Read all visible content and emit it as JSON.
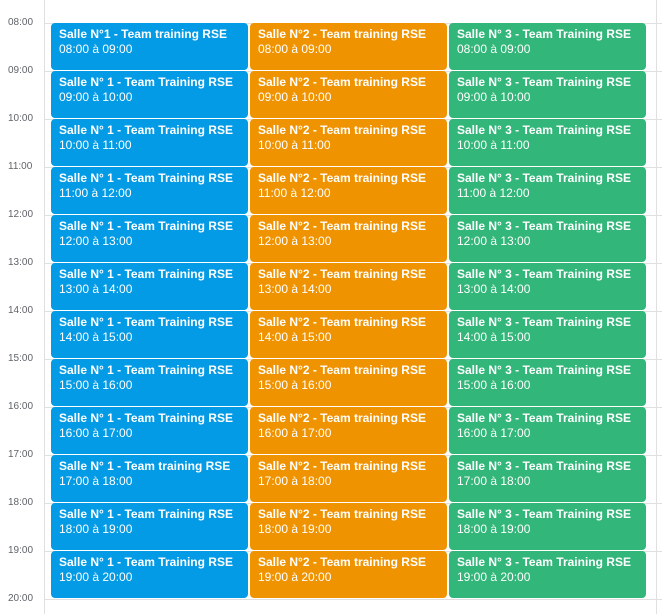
{
  "time_labels": [
    "08:00",
    "09:00",
    "10:00",
    "11:00",
    "12:00",
    "13:00",
    "14:00",
    "15:00",
    "16:00",
    "17:00",
    "18:00",
    "19:00",
    "20:00"
  ],
  "rooms": [
    {
      "color": "#039be5",
      "events": [
        {
          "title": "Salle N°1 - Team training RSE",
          "time": "08:00 à 09:00"
        },
        {
          "title": "Salle N° 1 - Team Training RSE",
          "time": "09:00 à 10:00"
        },
        {
          "title": "Salle N° 1 - Team Training RSE",
          "time": "10:00 à 11:00"
        },
        {
          "title": "Salle N° 1 - Team Training RSE",
          "time": "11:00 à 12:00"
        },
        {
          "title": "Salle N° 1 - Team Training RSE",
          "time": "12:00 à 13:00"
        },
        {
          "title": "Salle N° 1 - Team Training RSE",
          "time": "13:00 à 14:00"
        },
        {
          "title": "Salle N° 1 - Team Training RSE",
          "time": "14:00 à 15:00"
        },
        {
          "title": "Salle N° 1 - Team Training RSE",
          "time": "15:00 à 16:00"
        },
        {
          "title": "Salle N° 1 - Team Training RSE",
          "time": "16:00 à 17:00"
        },
        {
          "title": "Salle N° 1 - Team training RSE",
          "time": "17:00 à 18:00"
        },
        {
          "title": "Salle N° 1 - Team Training RSE",
          "time": "18:00 à 19:00"
        },
        {
          "title": "Salle N° 1 - Team Training RSE",
          "time": "19:00 à 20:00"
        }
      ]
    },
    {
      "color": "#f09300",
      "events": [
        {
          "title": "Salle N°2 - Team training RSE",
          "time": "08:00 à 09:00"
        },
        {
          "title": "Salle N°2 - Team training RSE",
          "time": "09:00 à 10:00"
        },
        {
          "title": "Salle N°2 - Team training RSE",
          "time": "10:00 à 11:00"
        },
        {
          "title": "Salle N°2 - Team training RSE",
          "time": "11:00 à 12:00"
        },
        {
          "title": "Salle N°2 - Team training RSE",
          "time": "12:00 à 13:00"
        },
        {
          "title": "Salle N°2 - Team training RSE",
          "time": "13:00 à 14:00"
        },
        {
          "title": "Salle N°2 - Team training RSE",
          "time": "14:00 à 15:00"
        },
        {
          "title": "Salle N°2 - Team training RSE",
          "time": "15:00 à 16:00"
        },
        {
          "title": "Salle N°2 - Team training RSE",
          "time": "16:00 à 17:00"
        },
        {
          "title": "Salle N°2 - Team training RSE",
          "time": "17:00 à 18:00"
        },
        {
          "title": "Salle N°2 - Team training RSE",
          "time": "18:00 à 19:00"
        },
        {
          "title": "Salle N°2 - Team training RSE",
          "time": "19:00 à 20:00"
        }
      ]
    },
    {
      "color": "#33b679",
      "events": [
        {
          "title": "Salle N° 3 - Team Training RSE",
          "time": "08:00 à 09:00"
        },
        {
          "title": "Salle N° 3 - Team Training RSE",
          "time": "09:00 à 10:00"
        },
        {
          "title": "Salle N° 3 - Team Training RSE",
          "time": "10:00 à 11:00"
        },
        {
          "title": "Salle N° 3 - Team Training RSE",
          "time": "11:00 à 12:00"
        },
        {
          "title": "Salle N° 3 - Team Training RSE",
          "time": "12:00 à 13:00"
        },
        {
          "title": "Salle N° 3 - Team Training RSE",
          "time": "13:00 à 14:00"
        },
        {
          "title": "Salle N° 3 - Team Training RSE",
          "time": "14:00 à 15:00"
        },
        {
          "title": "Salle N° 3 - Team Training RSE",
          "time": "15:00 à 16:00"
        },
        {
          "title": "Salle N° 3 - Team Training RSE",
          "time": "16:00 à 17:00"
        },
        {
          "title": "Salle N° 3 - Team Training RSE",
          "time": "17:00 à 18:00"
        },
        {
          "title": "Salle N° 3 - Team Training RSE",
          "time": "18:00 à 19:00"
        },
        {
          "title": "Salle N° 3 - Team Training RSE",
          "time": "19:00 à 20:00"
        }
      ]
    }
  ]
}
